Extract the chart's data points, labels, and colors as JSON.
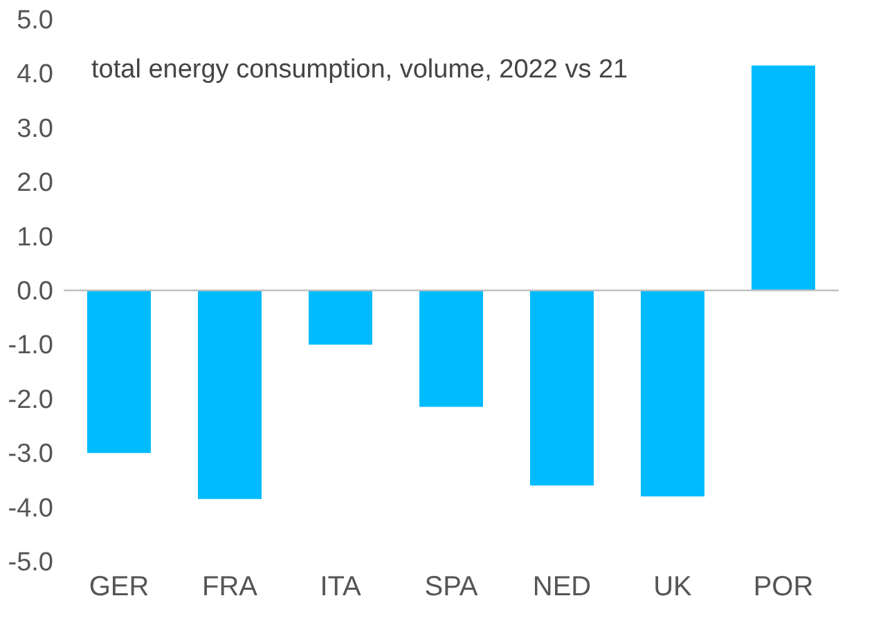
{
  "chart_data": {
    "type": "bar",
    "categories": [
      "GER",
      "FRA",
      "ITA",
      "SPA",
      "NED",
      "UK",
      "POR"
    ],
    "values": [
      -3.0,
      -3.85,
      -1.0,
      -2.15,
      -3.6,
      -3.8,
      4.15
    ],
    "color": "#00bbff",
    "ylim": [
      -5,
      5
    ],
    "yticks": [
      {
        "value": -5,
        "label": "-5.0"
      },
      {
        "value": -4,
        "label": "-4.0"
      },
      {
        "value": -3,
        "label": "-3.0"
      },
      {
        "value": -2,
        "label": "-2.0"
      },
      {
        "value": -1,
        "label": "-1.0"
      },
      {
        "value": 0,
        "label": "0.0"
      },
      {
        "value": 1,
        "label": "1.0"
      },
      {
        "value": 2,
        "label": "2.0"
      },
      {
        "value": 3,
        "label": "3.0"
      },
      {
        "value": 4,
        "label": "4.0"
      },
      {
        "value": 5,
        "label": "5.0"
      }
    ],
    "annotations": [
      "total energy consumption, volume, 2022 vs 21"
    ],
    "ref_lines": [
      {
        "axis": "y",
        "value": 0,
        "color": "#bfbfbf"
      }
    ],
    "grid": false
  }
}
